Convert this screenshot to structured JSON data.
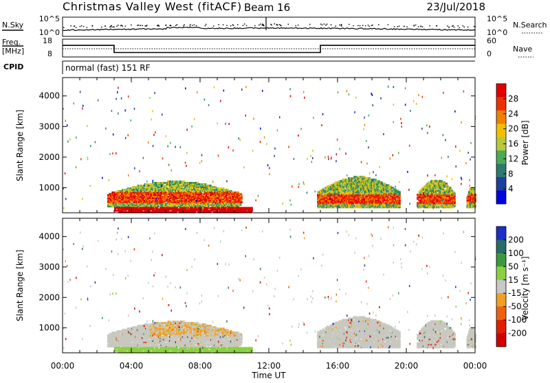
{
  "header": {
    "title": "Christmas Valley West (fitACF)",
    "beam": "Beam 16",
    "date": "23/Jul/2018"
  },
  "panels": {
    "nsky": {
      "left_label": "N.Sky",
      "right_label": "N.Search",
      "left_ticks": [
        "10^5",
        "10^0"
      ],
      "right_ticks": [
        "10^5",
        "10^0"
      ]
    },
    "freq": {
      "left_label_line1": "Freq.",
      "left_label_line2": "[MHz]",
      "left_ticks": [
        "18",
        "8"
      ],
      "right_ticks": [
        "60",
        "0"
      ],
      "right_label": "Nave",
      "freq_steps": [
        {
          "from": 0,
          "to": 3,
          "value": 14.5
        },
        {
          "from": 3,
          "to": 15,
          "value": 10.5
        },
        {
          "from": 15,
          "to": 24,
          "value": 14.5
        }
      ]
    },
    "cpid": {
      "label": "CPID",
      "mode": "normal (fast) 151 RF"
    }
  },
  "chart_data": [
    {
      "type": "heatmap",
      "title": "",
      "quantity": "Power",
      "ylabel": "Slant Range [km]",
      "ylim": [
        180,
        4600
      ],
      "yticks": [
        "1000",
        "2000",
        "3000",
        "4000"
      ],
      "colorbar_label": "Power [dB]",
      "colorbar_ticks": [
        "4",
        "8",
        "12",
        "16",
        "20",
        "24",
        "28"
      ],
      "colorbar_range": [
        0,
        30
      ]
    },
    {
      "type": "heatmap",
      "title": "",
      "quantity": "Velocity",
      "ylabel": "Slant Range [km]",
      "ylim": [
        180,
        4600
      ],
      "yticks": [
        "1000",
        "2000",
        "3000",
        "4000"
      ],
      "colorbar_label": "Velocity [m s⁻¹]",
      "colorbar_ticks": [
        "200",
        "100",
        "50",
        "15",
        "-15",
        "-50",
        "-100",
        "-200"
      ],
      "colorbar_range": [
        -250,
        250
      ]
    }
  ],
  "x_axis": {
    "label": "Time UT",
    "ticks": [
      "00:00",
      "04:00",
      "08:00",
      "12:00",
      "16:00",
      "20:00",
      "00:00"
    ],
    "range_hours": [
      0,
      24
    ]
  },
  "colors": {
    "power_scale": [
      "#0000e0",
      "#1e3f9e",
      "#2d7a6e",
      "#4caa55",
      "#b8c83a",
      "#f0c000",
      "#f08000",
      "#f03000",
      "#e00000"
    ],
    "velocity_scale": [
      "#1a2ec8",
      "#2a6a68",
      "#3a9a40",
      "#8ad040",
      "#c8c8c8",
      "#f0a020",
      "#f06010",
      "#e02000",
      "#d00000"
    ],
    "velocity_ground": "#c8c8c0"
  }
}
